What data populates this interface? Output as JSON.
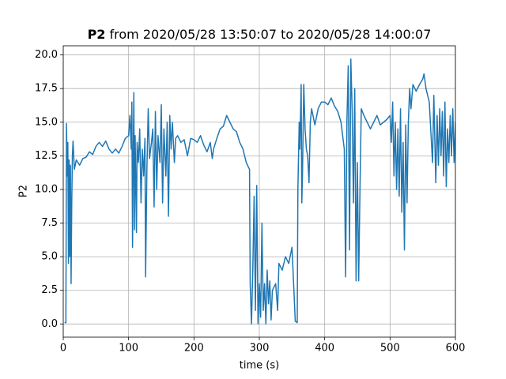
{
  "chart_data": {
    "type": "line",
    "title_prefix": "P2",
    "title": "from 2020/05/28 13:50:07 to 2020/05/28 14:00:07",
    "xlabel": "time (s)",
    "ylabel": "P2",
    "xlim": [
      0,
      600
    ],
    "xticks": [
      0,
      100,
      200,
      300,
      400,
      500,
      600
    ],
    "ylim": [
      -0.98,
      20.68
    ],
    "yticks": [
      {
        "value": 0,
        "label": "0.0"
      },
      {
        "value": 2.5,
        "label": "2.5"
      },
      {
        "value": 5,
        "label": "5.0"
      },
      {
        "value": 7.5,
        "label": "7.5"
      },
      {
        "value": 10,
        "label": "10.0"
      },
      {
        "value": 12.5,
        "label": "12.5"
      },
      {
        "value": 15,
        "label": "15.0"
      },
      {
        "value": 17.5,
        "label": "17.5"
      },
      {
        "value": 20,
        "label": "20.0"
      }
    ],
    "grid": true,
    "series": [
      {
        "color": "#1f77b4",
        "x": [
          2,
          4,
          5,
          6,
          7,
          8,
          9,
          10,
          11,
          12,
          13,
          14,
          15,
          17,
          20,
          25,
          30,
          35,
          40,
          45,
          50,
          55,
          60,
          65,
          70,
          75,
          80,
          85,
          90,
          95,
          100,
          102,
          104,
          105,
          106,
          107,
          108,
          109,
          110,
          112,
          113,
          115,
          117,
          119,
          121,
          123,
          125,
          126,
          128,
          130,
          132,
          135,
          137,
          139,
          141,
          143,
          145,
          148,
          150,
          152,
          154,
          157,
          159,
          161,
          163,
          165,
          167,
          170,
          172,
          175,
          180,
          185,
          190,
          195,
          200,
          205,
          210,
          215,
          220,
          225,
          228,
          230,
          235,
          240,
          245,
          250,
          255,
          260,
          265,
          270,
          275,
          280,
          285,
          286,
          288,
          290,
          292,
          294,
          296,
          298,
          300,
          302,
          304,
          306,
          308,
          310,
          312,
          314,
          316,
          318,
          320,
          325,
          328,
          330,
          335,
          340,
          345,
          350,
          352,
          355,
          358,
          359,
          361,
          362,
          364,
          365,
          366,
          368,
          370,
          372,
          374,
          376,
          378,
          380,
          385,
          390,
          395,
          400,
          405,
          410,
          415,
          420,
          425,
          430,
          432,
          434,
          436,
          438,
          440,
          442,
          444,
          446,
          448,
          450,
          452,
          454,
          456,
          460,
          465,
          470,
          475,
          480,
          485,
          490,
          495,
          500,
          502,
          504,
          506,
          508,
          510,
          512,
          514,
          516,
          518,
          520,
          522,
          524,
          526,
          528,
          530,
          532,
          535,
          540,
          545,
          550,
          552,
          555,
          560,
          565,
          567,
          570,
          572,
          574,
          576,
          578,
          580,
          582,
          584,
          586,
          588,
          590,
          592,
          594,
          596,
          598,
          600
        ],
        "values": [
          0.1,
          0.1,
          14.9,
          11,
          13.5,
          4.5,
          12.2,
          5,
          11.8,
          3,
          9,
          12.5,
          13.6,
          11.5,
          12.2,
          11.8,
          12.3,
          12.4,
          12.8,
          12.6,
          13.2,
          13.5,
          13.2,
          13.6,
          13,
          12.7,
          13,
          12.7,
          13.2,
          13.8,
          14,
          15.5,
          13,
          16.5,
          5.7,
          12,
          17.2,
          7,
          14,
          6.8,
          13.5,
          12,
          14.5,
          9,
          13,
          11,
          13.8,
          3.5,
          11.5,
          16,
          12.3,
          13.5,
          14.5,
          8.7,
          15.8,
          10,
          14,
          12,
          16.3,
          9,
          14.5,
          11,
          15,
          8,
          15.5,
          13,
          15,
          12,
          13.8,
          14,
          13.5,
          13.7,
          12.5,
          13.8,
          13.7,
          13.5,
          14,
          13.3,
          12.8,
          13.5,
          12.3,
          13,
          13.8,
          14.5,
          14.7,
          15.5,
          15,
          14.5,
          14.3,
          13.5,
          13,
          12,
          11.5,
          3,
          0,
          4,
          9.5,
          1,
          10.3,
          0,
          3,
          0.5,
          7.5,
          1,
          3,
          0,
          4,
          1.5,
          3.2,
          0.3,
          2.5,
          3,
          1,
          4.5,
          4,
          5,
          4.5,
          5.7,
          3.5,
          0.2,
          0.1,
          10,
          15,
          13,
          17.8,
          9,
          11,
          17.8,
          14.5,
          13,
          12.5,
          10.5,
          15,
          16,
          14.8,
          16,
          16.5,
          16.5,
          16.3,
          16.8,
          16.2,
          15.8,
          15,
          13,
          3.5,
          15,
          19.2,
          5.5,
          19.7,
          16,
          9,
          17.5,
          3.2,
          12,
          3.2,
          10,
          16,
          15.5,
          15,
          14.5,
          15,
          15.5,
          14.8,
          15,
          15.2,
          15.5,
          13.5,
          16.5,
          11,
          15,
          10,
          14.5,
          9.5,
          16,
          8.3,
          13.5,
          5.5,
          14.8,
          9,
          15,
          17.5,
          16,
          17.8,
          17.3,
          17.8,
          18.2,
          18.6,
          17.5,
          16.5,
          12,
          17,
          10.5,
          15.5,
          11.8,
          16,
          12.5,
          15.8,
          11,
          16.5,
          10.2,
          14.5,
          12,
          15.5,
          12.5,
          16,
          12,
          15
        ]
      }
    ]
  }
}
